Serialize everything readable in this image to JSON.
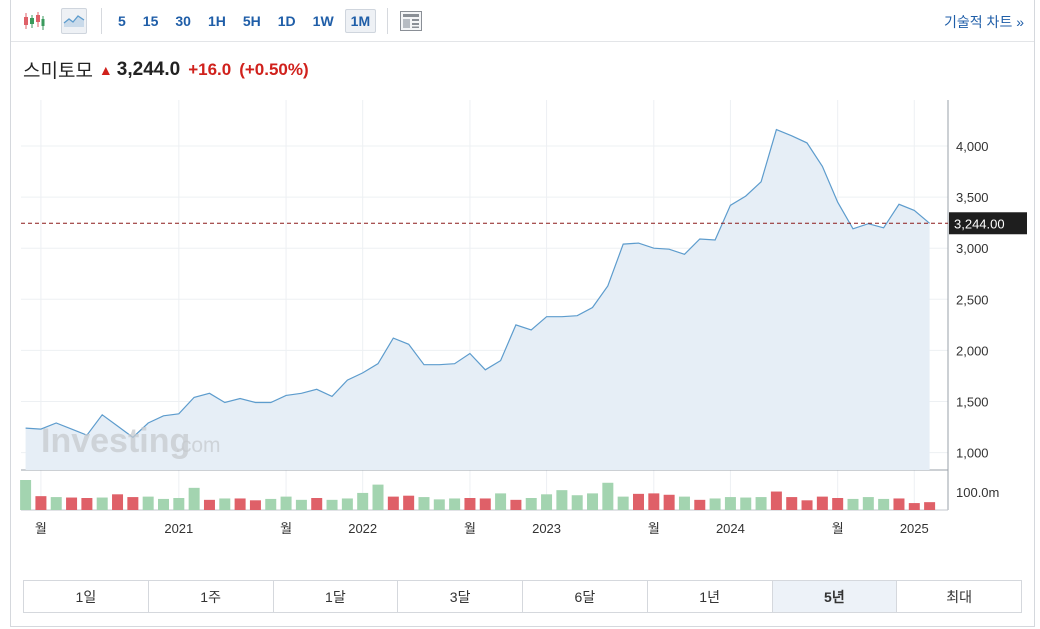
{
  "toolbar": {
    "chart_type_icons": [
      "candlestick-icon",
      "area-chart-icon"
    ],
    "timeframes": [
      "5",
      "15",
      "30",
      "1H",
      "5H",
      "1D",
      "1W",
      "1M"
    ],
    "active_timeframe": "1M",
    "layout_icon": "layout-icon",
    "technical_link": "기술적 차트 »"
  },
  "quote": {
    "name": "스미토모",
    "arrow": "▲",
    "price": "3,244.0",
    "change": "+16.0",
    "change_pct": "(+0.50%)"
  },
  "watermark": {
    "brand": "Investing",
    "suffix": ".com"
  },
  "ranges": [
    "1일",
    "1주",
    "1달",
    "3달",
    "6달",
    "1년",
    "5년",
    "최대"
  ],
  "active_range": "5년",
  "colors": {
    "line": "#5d9ccd",
    "area": "#e6eef6",
    "up": "#a3d4b0",
    "down": "#df6068",
    "accent": "#1f5ea8",
    "negative_change": "#d0211c"
  },
  "chart_data": {
    "type": "area",
    "y_ticks": [
      "4,000",
      "3,500",
      "3,000",
      "2,500",
      "2,000",
      "1,500",
      "1,000"
    ],
    "y_tick_values": [
      4000,
      3500,
      3000,
      2500,
      2000,
      1500,
      1000
    ],
    "ylim": [
      830,
      4450
    ],
    "x_labels": [
      {
        "i": 1,
        "text": "월"
      },
      {
        "i": 10,
        "text": "2021"
      },
      {
        "i": 17,
        "text": "월"
      },
      {
        "i": 22,
        "text": "2022"
      },
      {
        "i": 29,
        "text": "월"
      },
      {
        "i": 34,
        "text": "2023"
      },
      {
        "i": 41,
        "text": "월"
      },
      {
        "i": 46,
        "text": "2024"
      },
      {
        "i": 53,
        "text": "월"
      },
      {
        "i": 58,
        "text": "2025"
      }
    ],
    "x_index_range": [
      -0.3,
      60.2
    ],
    "values": [
      1240,
      1230,
      1290,
      1230,
      1170,
      1370,
      1260,
      1150,
      1290,
      1360,
      1380,
      1540,
      1580,
      1490,
      1530,
      1490,
      1490,
      1560,
      1580,
      1620,
      1550,
      1710,
      1780,
      1870,
      2120,
      2060,
      1860,
      1860,
      1870,
      1970,
      1810,
      1900,
      2250,
      2200,
      2330,
      2330,
      2340,
      2420,
      2630,
      3040,
      3050,
      3000,
      2990,
      2940,
      3090,
      3080,
      3420,
      3510,
      3650,
      4160,
      4100,
      4030,
      3800,
      3450,
      3190,
      3240,
      3200,
      3430,
      3370,
      3244
    ],
    "last_value_label": "3,244.00",
    "last_value": 3244,
    "volume_label": "100.0m",
    "volume": [
      [
        130,
        1
      ],
      [
        60,
        0
      ],
      [
        56,
        1
      ],
      [
        54,
        0
      ],
      [
        52,
        0
      ],
      [
        54,
        1
      ],
      [
        68,
        0
      ],
      [
        56,
        0
      ],
      [
        58,
        1
      ],
      [
        48,
        1
      ],
      [
        52,
        1
      ],
      [
        96,
        1
      ],
      [
        44,
        0
      ],
      [
        50,
        1
      ],
      [
        50,
        0
      ],
      [
        42,
        0
      ],
      [
        48,
        1
      ],
      [
        58,
        1
      ],
      [
        44,
        1
      ],
      [
        52,
        0
      ],
      [
        44,
        1
      ],
      [
        50,
        1
      ],
      [
        74,
        1
      ],
      [
        110,
        1
      ],
      [
        58,
        0
      ],
      [
        62,
        0
      ],
      [
        56,
        1
      ],
      [
        46,
        1
      ],
      [
        50,
        1
      ],
      [
        52,
        0
      ],
      [
        50,
        0
      ],
      [
        72,
        1
      ],
      [
        44,
        0
      ],
      [
        52,
        1
      ],
      [
        68,
        1
      ],
      [
        86,
        1
      ],
      [
        64,
        1
      ],
      [
        72,
        1
      ],
      [
        118,
        1
      ],
      [
        58,
        1
      ],
      [
        70,
        0
      ],
      [
        72,
        0
      ],
      [
        66,
        0
      ],
      [
        58,
        1
      ],
      [
        44,
        0
      ],
      [
        50,
        1
      ],
      [
        56,
        1
      ],
      [
        54,
        1
      ],
      [
        56,
        1
      ],
      [
        80,
        0
      ],
      [
        56,
        0
      ],
      [
        42,
        0
      ],
      [
        58,
        0
      ],
      [
        52,
        0
      ],
      [
        48,
        1
      ],
      [
        56,
        1
      ],
      [
        48,
        1
      ],
      [
        50,
        0
      ],
      [
        30,
        0
      ],
      [
        34,
        0
      ]
    ]
  }
}
